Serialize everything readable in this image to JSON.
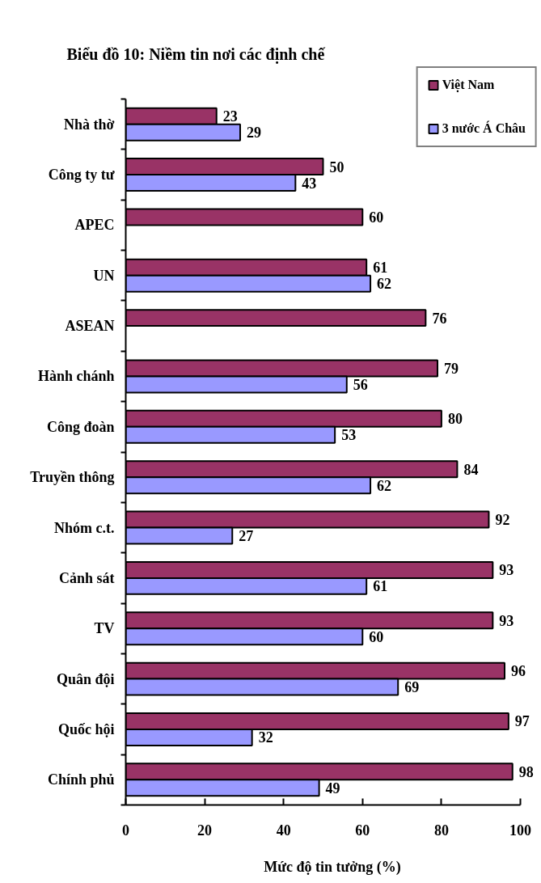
{
  "chart_data": {
    "type": "bar",
    "orientation": "horizontal",
    "title": "Biểu đồ 10: Niềm tin nơi các định chế",
    "xlabel": "Mức độ tin tưởng (%)",
    "categories": [
      "Nhà thờ",
      "Công ty tư",
      "APEC",
      "UN",
      "ASEAN",
      "Hành chánh",
      "Công đoàn",
      "Truyền thông",
      "Nhóm c.t.",
      "Cảnh sát",
      "TV",
      "Quân đội",
      "Quốc hội",
      "Chính phủ"
    ],
    "series": [
      {
        "name": "Việt Nam",
        "color": "#993366",
        "values": [
          23,
          50,
          60,
          61,
          76,
          79,
          80,
          84,
          92,
          93,
          93,
          96,
          97,
          98
        ]
      },
      {
        "name": "3 nước Á Châu",
        "color": "#9999ff",
        "values": [
          29,
          43,
          null,
          62,
          null,
          56,
          53,
          62,
          27,
          61,
          60,
          69,
          32,
          49
        ]
      }
    ],
    "xlim": [
      0,
      100
    ],
    "xticks": [
      0,
      20,
      40,
      60,
      80,
      100
    ],
    "legend": "top right",
    "data_labels": true
  }
}
